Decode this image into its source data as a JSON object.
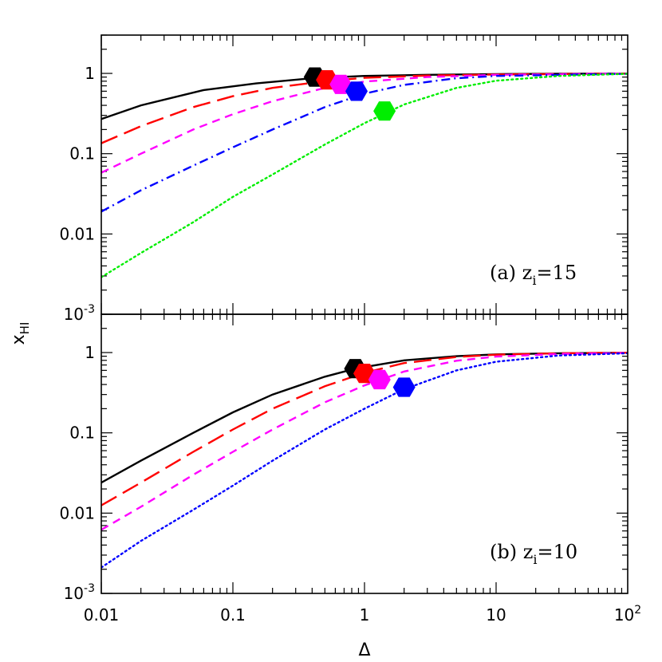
{
  "chart_data": [
    {
      "type": "line",
      "panel": "a",
      "annotation": {
        "prefix": "(a)  z",
        "sub": "i",
        "suffix": "=15"
      },
      "xlim": [
        0.01,
        100
      ],
      "ylim": [
        0.001,
        3
      ],
      "x_scale": "log",
      "y_scale": "log",
      "yticklabels": [
        "1",
        "0.1",
        "0.01",
        "10"
      ],
      "yticklabel_exp": "-3",
      "series": [
        {
          "color": "#000000",
          "dash": "solid",
          "x": [
            0.01,
            0.02,
            0.06,
            0.15,
            0.4,
            1,
            3,
            10,
            30,
            100
          ],
          "y": [
            0.27,
            0.4,
            0.62,
            0.75,
            0.87,
            0.93,
            0.96,
            0.98,
            0.99,
            0.995
          ],
          "marker": {
            "x": 0.42,
            "y": 0.9
          }
        },
        {
          "color": "#ff0000",
          "dash": "long-dash",
          "x": [
            0.01,
            0.02,
            0.05,
            0.1,
            0.2,
            0.5,
            1,
            3,
            10,
            100
          ],
          "y": [
            0.135,
            0.22,
            0.38,
            0.52,
            0.66,
            0.8,
            0.88,
            0.94,
            0.97,
            0.995
          ],
          "marker": {
            "x": 0.52,
            "y": 0.83
          }
        },
        {
          "color": "#ff00ff",
          "dash": "short-dash",
          "x": [
            0.01,
            0.02,
            0.05,
            0.1,
            0.2,
            0.5,
            1,
            3,
            10,
            100
          ],
          "y": [
            0.058,
            0.1,
            0.2,
            0.31,
            0.45,
            0.66,
            0.79,
            0.9,
            0.96,
            0.995
          ],
          "marker": {
            "x": 0.66,
            "y": 0.73
          }
        },
        {
          "color": "#0000ff",
          "dash": "dot-dash",
          "x": [
            0.01,
            0.02,
            0.05,
            0.1,
            0.2,
            0.5,
            1,
            2,
            5,
            10,
            100
          ],
          "y": [
            0.019,
            0.035,
            0.071,
            0.12,
            0.2,
            0.38,
            0.56,
            0.72,
            0.87,
            0.93,
            0.99
          ],
          "marker": {
            "x": 0.87,
            "y": 0.6
          }
        },
        {
          "color": "#00ee00",
          "dash": "dotted",
          "x": [
            0.01,
            0.02,
            0.05,
            0.1,
            0.2,
            0.5,
            1,
            2,
            5,
            10,
            30,
            100
          ],
          "y": [
            0.0029,
            0.0058,
            0.014,
            0.029,
            0.055,
            0.13,
            0.24,
            0.41,
            0.66,
            0.81,
            0.93,
            0.99
          ],
          "marker": {
            "x": 1.42,
            "y": 0.34
          }
        }
      ]
    },
    {
      "type": "line",
      "panel": "b",
      "annotation": {
        "prefix": "(b)  z",
        "sub": "i",
        "suffix": "=10"
      },
      "xlim": [
        0.01,
        100
      ],
      "ylim": [
        0.001,
        3
      ],
      "x_scale": "log",
      "y_scale": "log",
      "xticklabels": [
        "0.01",
        "0.1",
        "1",
        "10",
        "10"
      ],
      "xticklabel_exp": "2",
      "yticklabels": [
        "1",
        "0.1",
        "0.01",
        "10"
      ],
      "yticklabel_exp": "-3",
      "series": [
        {
          "color": "#000000",
          "dash": "solid",
          "x": [
            0.01,
            0.02,
            0.05,
            0.1,
            0.2,
            0.5,
            0.85,
            2,
            5,
            10,
            30,
            100
          ],
          "y": [
            0.024,
            0.045,
            0.1,
            0.18,
            0.3,
            0.5,
            0.63,
            0.8,
            0.9,
            0.95,
            0.98,
            0.995
          ],
          "marker": {
            "x": 0.85,
            "y": 0.63
          }
        },
        {
          "color": "#ff0000",
          "dash": "long-dash",
          "x": [
            0.01,
            0.02,
            0.05,
            0.1,
            0.2,
            0.5,
            1,
            2,
            5,
            10,
            30,
            100
          ],
          "y": [
            0.0125,
            0.024,
            0.058,
            0.11,
            0.2,
            0.38,
            0.56,
            0.74,
            0.88,
            0.94,
            0.98,
            0.995
          ],
          "marker": {
            "x": 1.0,
            "y": 0.55
          }
        },
        {
          "color": "#ff00ff",
          "dash": "short-dash",
          "x": [
            0.01,
            0.02,
            0.05,
            0.1,
            0.2,
            0.5,
            1,
            2,
            5,
            10,
            30,
            100
          ],
          "y": [
            0.0062,
            0.012,
            0.03,
            0.058,
            0.11,
            0.24,
            0.39,
            0.58,
            0.79,
            0.89,
            0.96,
            0.99
          ],
          "marker": {
            "x": 1.3,
            "y": 0.46
          }
        },
        {
          "color": "#0000ff",
          "dash": "dotted",
          "x": [
            0.01,
            0.02,
            0.05,
            0.1,
            0.2,
            0.5,
            1,
            2,
            5,
            10,
            30,
            100
          ],
          "y": [
            0.0021,
            0.0045,
            0.011,
            0.022,
            0.045,
            0.11,
            0.2,
            0.35,
            0.6,
            0.77,
            0.92,
            0.98
          ],
          "marker": {
            "x": 2.0,
            "y": 0.37
          }
        }
      ]
    }
  ],
  "labels": {
    "ylabel_main": "x",
    "ylabel_sub": "HI",
    "xlabel": "Δ"
  }
}
